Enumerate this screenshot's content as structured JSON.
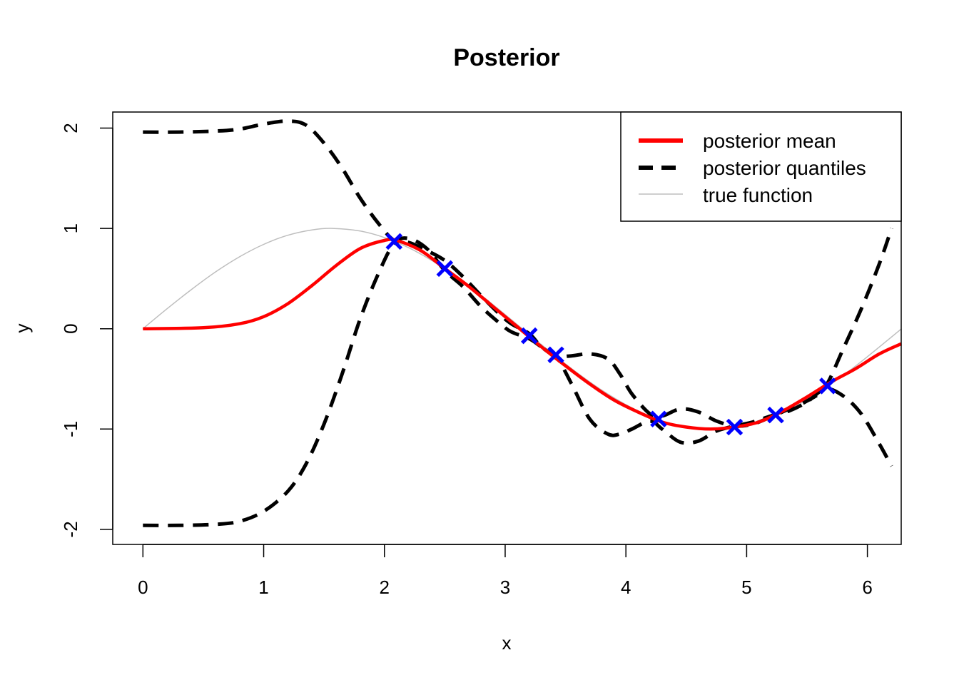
{
  "chart_data": {
    "type": "line",
    "title": "Posterior",
    "xlabel": "x",
    "ylabel": "y",
    "xlim": [
      -0.25,
      6.28
    ],
    "ylim": [
      -2.15,
      2.16
    ],
    "xticks": [
      0,
      1,
      2,
      3,
      4,
      5,
      6
    ],
    "yticks": [
      -2,
      -1,
      0,
      1,
      2
    ],
    "xtick_labels": [
      "0",
      "1",
      "2",
      "3",
      "4",
      "5",
      "6"
    ],
    "ytick_labels": [
      "-2",
      "-1",
      "0",
      "1",
      "2"
    ],
    "grid": false,
    "legend": {
      "position": "top-right",
      "entries": [
        "posterior mean",
        "posterior quantiles",
        "true function"
      ]
    },
    "colors": {
      "posterior_mean": "#ff0000",
      "quantiles": "#000000",
      "true_function": "#bebebe",
      "observations": "#0000ff"
    },
    "series": [
      {
        "name": "posterior mean",
        "x": [
          0,
          0.5,
          0.8,
          1.0,
          1.2,
          1.4,
          1.6,
          1.8,
          2.0,
          2.1,
          2.3,
          2.5,
          2.7,
          2.9,
          3.1,
          3.3,
          3.5,
          3.7,
          3.9,
          4.1,
          4.3,
          4.5,
          4.7,
          4.9,
          5.1,
          5.3,
          5.5,
          5.7,
          5.9,
          6.1,
          6.28
        ],
        "y": [
          0,
          0.01,
          0.05,
          0.12,
          0.25,
          0.43,
          0.63,
          0.8,
          0.88,
          0.88,
          0.78,
          0.6,
          0.42,
          0.22,
          0.02,
          -0.18,
          -0.37,
          -0.55,
          -0.71,
          -0.83,
          -0.93,
          -0.98,
          -1.0,
          -0.98,
          -0.93,
          -0.82,
          -0.68,
          -0.53,
          -0.4,
          -0.25,
          -0.15
        ]
      },
      {
        "name": "posterior quantiles",
        "x": [
          0,
          0.3,
          0.6,
          0.8,
          1.0,
          1.2,
          1.35,
          1.5,
          1.65,
          1.8,
          1.95,
          2.08,
          2.2,
          2.35,
          2.5,
          2.65,
          2.8,
          2.95,
          3.05,
          3.2,
          3.3,
          3.42,
          3.55,
          3.7,
          3.85,
          3.95,
          4.05,
          4.2,
          4.3,
          4.45,
          4.6,
          4.75,
          4.9,
          5.05,
          5.2,
          5.35,
          5.5,
          5.65,
          5.8,
          5.95,
          6.1,
          6.2
        ],
        "y": [
          1.96,
          1.96,
          1.97,
          1.99,
          2.04,
          2.07,
          2.03,
          1.85,
          1.6,
          1.3,
          1.05,
          0.88,
          0.86,
          0.78,
          0.68,
          0.52,
          0.33,
          0.15,
          0.05,
          -0.05,
          -0.18,
          -0.27,
          -0.27,
          -0.25,
          -0.3,
          -0.45,
          -0.65,
          -0.85,
          -0.87,
          -0.8,
          -0.83,
          -0.92,
          -0.97,
          -0.95,
          -0.88,
          -0.8,
          -0.72,
          -0.58,
          -0.2,
          0.2,
          0.65,
          1.0
        ]
      },
      {
        "name": "posterior quantiles",
        "x": [
          0,
          0.3,
          0.6,
          0.8,
          1.0,
          1.2,
          1.35,
          1.5,
          1.65,
          1.8,
          1.95,
          2.08,
          2.2,
          2.35,
          2.5,
          2.65,
          2.8,
          2.95,
          3.05,
          3.2,
          3.3,
          3.42,
          3.55,
          3.7,
          3.85,
          3.95,
          4.05,
          4.2,
          4.3,
          4.45,
          4.6,
          4.75,
          4.9,
          5.05,
          5.2,
          5.35,
          5.5,
          5.65,
          5.8,
          5.95,
          6.1,
          6.2
        ],
        "y": [
          -1.96,
          -1.96,
          -1.95,
          -1.92,
          -1.82,
          -1.62,
          -1.35,
          -0.95,
          -0.45,
          0.1,
          0.55,
          0.85,
          0.9,
          0.8,
          0.58,
          0.42,
          0.22,
          0.06,
          -0.03,
          -0.1,
          -0.18,
          -0.27,
          -0.55,
          -0.9,
          -1.05,
          -1.05,
          -1.0,
          -0.92,
          -1.0,
          -1.13,
          -1.12,
          -1.02,
          -0.97,
          -0.93,
          -0.87,
          -0.82,
          -0.73,
          -0.6,
          -0.67,
          -0.85,
          -1.15,
          -1.37
        ]
      },
      {
        "name": "true function",
        "x": [
          0,
          0.2,
          0.4,
          0.6,
          0.8,
          1.0,
          1.2,
          1.4,
          1.5708,
          1.8,
          2.0,
          2.2,
          2.4,
          2.6,
          2.8,
          3.0,
          3.1416,
          3.4,
          3.6,
          3.8,
          4.0,
          4.2,
          4.4,
          4.7124,
          5.0,
          5.2,
          5.4,
          5.6,
          5.8,
          6.0,
          6.2832
        ],
        "y": [
          0,
          0.199,
          0.389,
          0.565,
          0.717,
          0.841,
          0.932,
          0.985,
          1.0,
          0.974,
          0.909,
          0.808,
          0.675,
          0.516,
          0.335,
          0.141,
          0,
          -0.256,
          -0.443,
          -0.612,
          -0.757,
          -0.872,
          -0.952,
          -1.0,
          -0.959,
          -0.883,
          -0.773,
          -0.631,
          -0.465,
          -0.279,
          0
        ]
      },
      {
        "name": "observations",
        "x": [
          2.08,
          2.5,
          3.2,
          3.42,
          4.27,
          4.9,
          5.24,
          5.67
        ],
        "y": [
          0.87,
          0.6,
          -0.07,
          -0.26,
          -0.9,
          -0.98,
          -0.86,
          -0.57
        ]
      }
    ]
  }
}
